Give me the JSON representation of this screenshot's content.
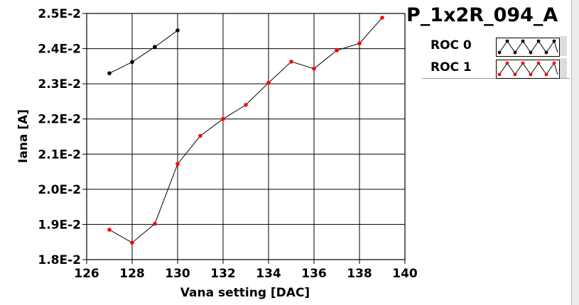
{
  "title": "P_1x2R_094_A",
  "legend": [
    {
      "label": "ROC 0",
      "color": "#000000"
    },
    {
      "label": "ROC 1",
      "color": "#ff0000"
    }
  ],
  "chart_data": {
    "type": "line",
    "title": "P_1x2R_094_A",
    "xlabel": "Vana setting [DAC]",
    "ylabel": "Iana [A]",
    "xlim": [
      126,
      140
    ],
    "ylim": [
      0.018,
      0.025
    ],
    "x_ticks": [
      126,
      128,
      130,
      132,
      134,
      136,
      138,
      140
    ],
    "x_tick_labels": [
      "126",
      "128",
      "130",
      "132",
      "134",
      "136",
      "138",
      "140"
    ],
    "y_ticks": [
      0.018,
      0.019,
      0.02,
      0.021,
      0.022,
      0.023,
      0.024,
      0.025
    ],
    "y_tick_labels": [
      "1.8E-2",
      "1.9E-2",
      "2.0E-2",
      "2.1E-2",
      "2.2E-2",
      "2.3E-2",
      "2.4E-2",
      "2.5E-2"
    ],
    "grid": true,
    "legend_position": "top-right",
    "series": [
      {
        "name": "ROC 0",
        "color": "#000000",
        "x": [
          127,
          128,
          129,
          130
        ],
        "y": [
          0.0233,
          0.02362,
          0.02405,
          0.02452
        ]
      },
      {
        "name": "ROC 1",
        "color": "#ff0000",
        "x": [
          127,
          128,
          129,
          130,
          131,
          132,
          133,
          134,
          135,
          136,
          137,
          138,
          139
        ],
        "y": [
          0.01885,
          0.01848,
          0.01902,
          0.02072,
          0.02152,
          0.022,
          0.0224,
          0.02303,
          0.02363,
          0.02343,
          0.02395,
          0.02415,
          0.02488
        ]
      }
    ]
  }
}
